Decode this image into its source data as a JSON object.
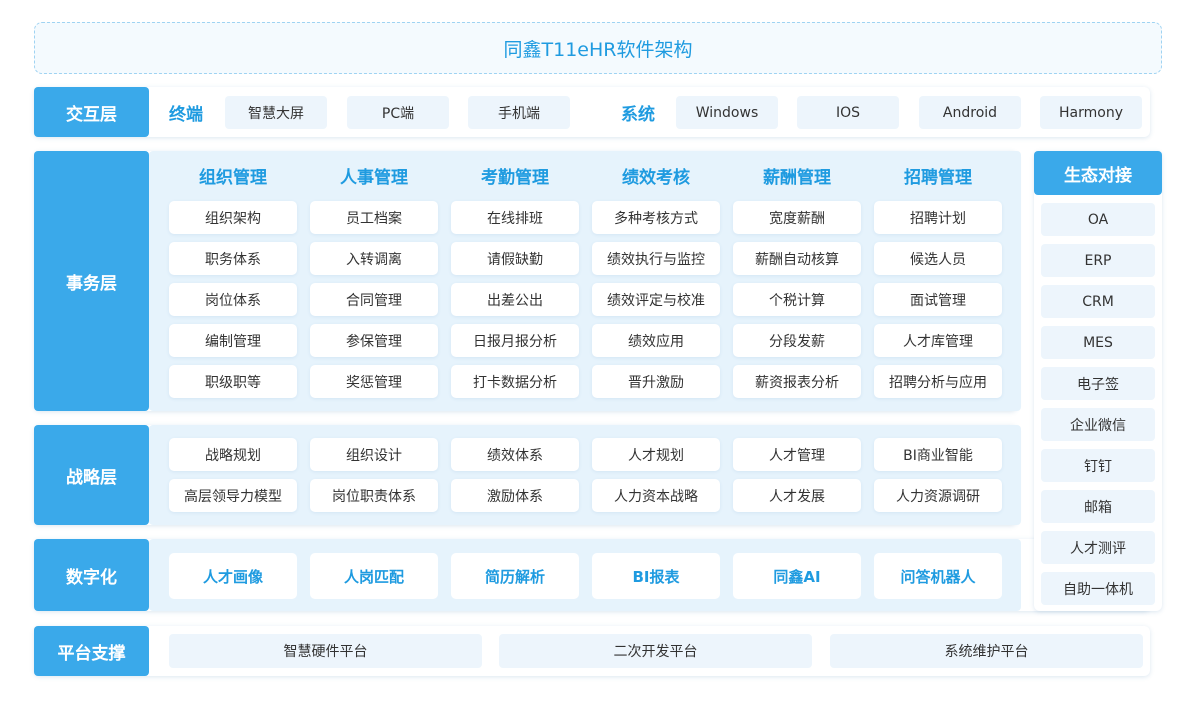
{
  "title": "同鑫T11eHR软件架构",
  "interaction": {
    "label": "交互层",
    "terminal": {
      "label": "终端",
      "items": [
        "智慧大屏",
        "PC端",
        "手机端"
      ]
    },
    "system": {
      "label": "系统",
      "items": [
        "Windows",
        "IOS",
        "Android",
        "Harmony"
      ]
    }
  },
  "business": {
    "label": "事务层",
    "columns": [
      {
        "title": "组织管理",
        "items": [
          "组织架构",
          "职务体系",
          "岗位体系",
          "编制管理",
          "职级职等"
        ]
      },
      {
        "title": "人事管理",
        "items": [
          "员工档案",
          "入转调离",
          "合同管理",
          "参保管理",
          "奖惩管理"
        ]
      },
      {
        "title": "考勤管理",
        "items": [
          "在线排班",
          "请假缺勤",
          "出差公出",
          "日报月报分析",
          "打卡数据分析"
        ]
      },
      {
        "title": "绩效考核",
        "items": [
          "多种考核方式",
          "绩效执行与监控",
          "绩效评定与校准",
          "绩效应用",
          "晋升激励"
        ]
      },
      {
        "title": "薪酬管理",
        "items": [
          "宽度薪酬",
          "薪酬自动核算",
          "个税计算",
          "分段发薪",
          "薪资报表分析"
        ]
      },
      {
        "title": "招聘管理",
        "items": [
          "招聘计划",
          "候选人员",
          "面试管理",
          "人才库管理",
          "招聘分析与应用"
        ]
      }
    ]
  },
  "strategy": {
    "label": "战略层",
    "rows": [
      [
        "战略规划",
        "组织设计",
        "绩效体系",
        "人才规划",
        "人才管理",
        "BI商业智能"
      ],
      [
        "高层领导力模型",
        "岗位职责体系",
        "激励体系",
        "人力资本战略",
        "人才发展",
        "人力资源调研"
      ]
    ]
  },
  "digital": {
    "label": "数字化",
    "items": [
      "人才画像",
      "人岗匹配",
      "简历解析",
      "BI报表",
      "同鑫AI",
      "问答机器人"
    ]
  },
  "platform": {
    "label": "平台支撑",
    "items": [
      "智慧硬件平台",
      "二次开发平台",
      "系统维护平台"
    ]
  },
  "ecosystem": {
    "title": "生态对接",
    "items": [
      "OA",
      "ERP",
      "CRM",
      "MES",
      "电子签",
      "企业微信",
      "钉钉",
      "邮箱",
      "人才测评",
      "自助一体机"
    ]
  }
}
